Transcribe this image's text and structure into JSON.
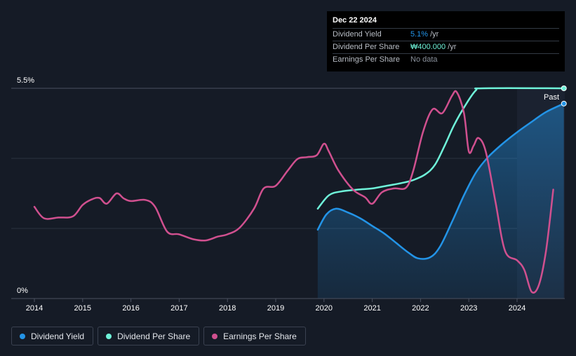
{
  "tooltip": {
    "date": "Dec 22 2024",
    "rows": [
      {
        "label": "Dividend Yield",
        "value": "5.1%",
        "unit": "/yr",
        "color": "#2394e7"
      },
      {
        "label": "Dividend Per Share",
        "value": "₩400.000",
        "unit": "/yr",
        "color": "#6ff3d9"
      },
      {
        "label": "Earnings Per Share",
        "value": "No data",
        "unit": "",
        "color": "#8a919c"
      }
    ]
  },
  "past_label": "Past",
  "legend": [
    {
      "label": "Dividend Yield",
      "color": "#2394e7"
    },
    {
      "label": "Dividend Per Share",
      "color": "#6ff3d9"
    },
    {
      "label": "Earnings Per Share",
      "color": "#d0508f"
    }
  ],
  "chart_data": {
    "type": "line",
    "x_ticks": [
      "2014",
      "2015",
      "2016",
      "2017",
      "2018",
      "2019",
      "2020",
      "2021",
      "2022",
      "2023",
      "2024"
    ],
    "y_tick_labels": [
      "5.5%",
      "0%"
    ],
    "ylim": [
      0,
      5.5
    ],
    "xlim": [
      2013.5,
      2025.0
    ],
    "grid": true,
    "legend_position": "bottom-left",
    "series": [
      {
        "name": "Dividend Yield",
        "color": "#2394e7",
        "filled": true,
        "points": [
          [
            2019.87,
            1.8
          ],
          [
            2020.05,
            2.2
          ],
          [
            2020.25,
            2.35
          ],
          [
            2020.5,
            2.25
          ],
          [
            2020.75,
            2.1
          ],
          [
            2021.0,
            1.9
          ],
          [
            2021.25,
            1.7
          ],
          [
            2021.5,
            1.45
          ],
          [
            2021.75,
            1.2
          ],
          [
            2021.95,
            1.05
          ],
          [
            2022.2,
            1.08
          ],
          [
            2022.4,
            1.35
          ],
          [
            2022.65,
            2.0
          ],
          [
            2022.9,
            2.7
          ],
          [
            2023.15,
            3.3
          ],
          [
            2023.4,
            3.7
          ],
          [
            2023.7,
            4.05
          ],
          [
            2024.0,
            4.35
          ],
          [
            2024.3,
            4.62
          ],
          [
            2024.6,
            4.88
          ],
          [
            2024.97,
            5.1
          ]
        ]
      },
      {
        "name": "Dividend Per Share",
        "color": "#6ff3d9",
        "filled": false,
        "points": [
          [
            2019.87,
            2.35
          ],
          [
            2020.1,
            2.7
          ],
          [
            2020.35,
            2.8
          ],
          [
            2020.7,
            2.85
          ],
          [
            2021.0,
            2.88
          ],
          [
            2021.3,
            2.95
          ],
          [
            2021.6,
            3.02
          ],
          [
            2021.85,
            3.1
          ],
          [
            2022.1,
            3.25
          ],
          [
            2022.3,
            3.5
          ],
          [
            2022.5,
            4.0
          ],
          [
            2022.7,
            4.55
          ],
          [
            2022.95,
            5.1
          ],
          [
            2023.15,
            5.45
          ],
          [
            2023.3,
            5.5
          ],
          [
            2024.97,
            5.5
          ]
        ]
      },
      {
        "name": "Earnings Per Share",
        "color": "#d0508f",
        "filled": false,
        "points": [
          [
            2014.0,
            2.4
          ],
          [
            2014.2,
            2.1
          ],
          [
            2014.5,
            2.12
          ],
          [
            2014.8,
            2.15
          ],
          [
            2015.0,
            2.45
          ],
          [
            2015.2,
            2.6
          ],
          [
            2015.35,
            2.63
          ],
          [
            2015.5,
            2.48
          ],
          [
            2015.7,
            2.75
          ],
          [
            2015.85,
            2.62
          ],
          [
            2016.0,
            2.55
          ],
          [
            2016.3,
            2.58
          ],
          [
            2016.5,
            2.4
          ],
          [
            2016.75,
            1.75
          ],
          [
            2017.0,
            1.68
          ],
          [
            2017.3,
            1.55
          ],
          [
            2017.55,
            1.52
          ],
          [
            2017.8,
            1.62
          ],
          [
            2018.0,
            1.68
          ],
          [
            2018.25,
            1.85
          ],
          [
            2018.55,
            2.35
          ],
          [
            2018.75,
            2.88
          ],
          [
            2019.0,
            2.95
          ],
          [
            2019.25,
            3.35
          ],
          [
            2019.45,
            3.65
          ],
          [
            2019.65,
            3.7
          ],
          [
            2019.85,
            3.75
          ],
          [
            2020.0,
            4.05
          ],
          [
            2020.1,
            3.85
          ],
          [
            2020.3,
            3.35
          ],
          [
            2020.6,
            2.85
          ],
          [
            2020.85,
            2.65
          ],
          [
            2021.0,
            2.48
          ],
          [
            2021.2,
            2.78
          ],
          [
            2021.45,
            2.88
          ],
          [
            2021.7,
            2.9
          ],
          [
            2021.85,
            3.35
          ],
          [
            2022.05,
            4.35
          ],
          [
            2022.25,
            4.95
          ],
          [
            2022.45,
            4.85
          ],
          [
            2022.65,
            5.3
          ],
          [
            2022.75,
            5.4
          ],
          [
            2022.9,
            4.85
          ],
          [
            2023.0,
            3.85
          ],
          [
            2023.1,
            4.0
          ],
          [
            2023.2,
            4.2
          ],
          [
            2023.35,
            3.85
          ],
          [
            2023.55,
            2.55
          ],
          [
            2023.75,
            1.25
          ],
          [
            2024.0,
            1.0
          ],
          [
            2024.15,
            0.75
          ],
          [
            2024.3,
            0.18
          ],
          [
            2024.45,
            0.35
          ],
          [
            2024.6,
            1.25
          ],
          [
            2024.75,
            2.85
          ]
        ]
      }
    ]
  }
}
